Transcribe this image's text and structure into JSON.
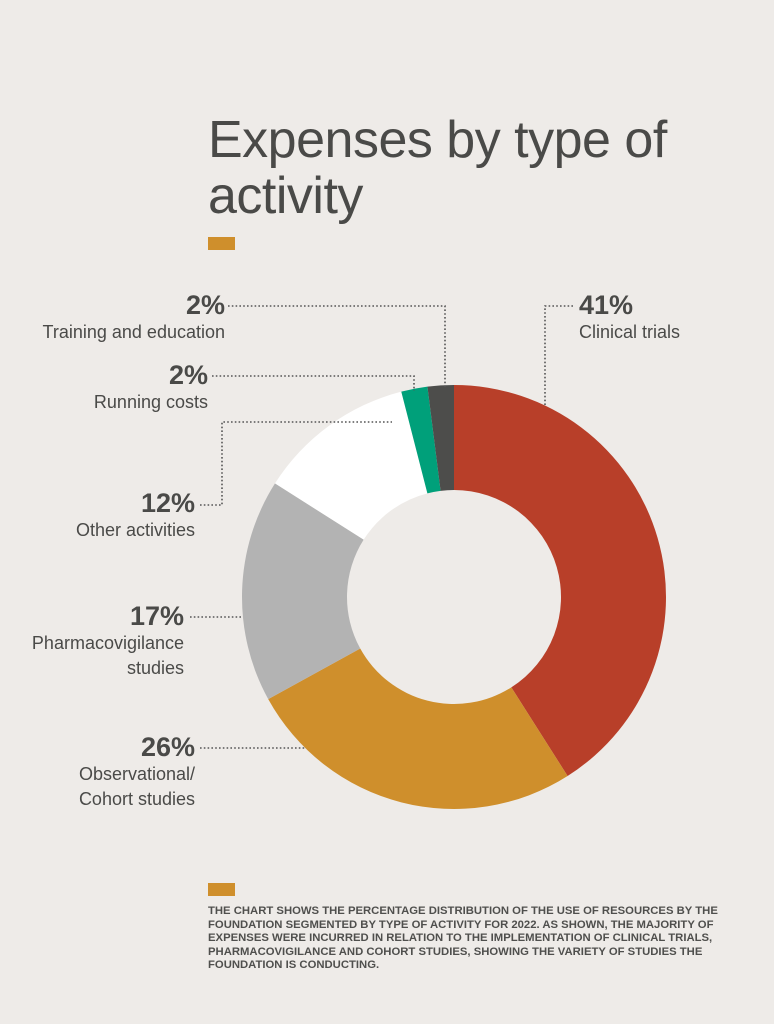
{
  "chart_data": {
    "type": "pie",
    "variant": "donut",
    "title": "Expenses by type of activity",
    "categories": [
      "Clinical trials",
      "Observational/ Cohort studies",
      "Pharmacovigilance studies",
      "Other activities",
      "Running costs",
      "Training and education"
    ],
    "values": [
      41,
      26,
      17,
      12,
      2,
      2
    ],
    "labels": [
      "41%",
      "26%",
      "17%",
      "12%",
      "2%",
      "2%"
    ],
    "colors": [
      "#b83f29",
      "#cf8f2c",
      "#b3b3b3",
      "#ffffff",
      "#00a07a",
      "#4d4d4b"
    ],
    "legend": "none"
  },
  "caption": "The chart shows the percentage distribution of the use of resources by the foundation segmented by type of activity for 2022. As shown, the majority of expenses were incurred in relation to the implementation of clinical trials, pharmacovigilance and cohort studies, showing the variety of studies the foundation is conducting.",
  "accent_color": "#cf8f2c",
  "background": "#eeebe8"
}
